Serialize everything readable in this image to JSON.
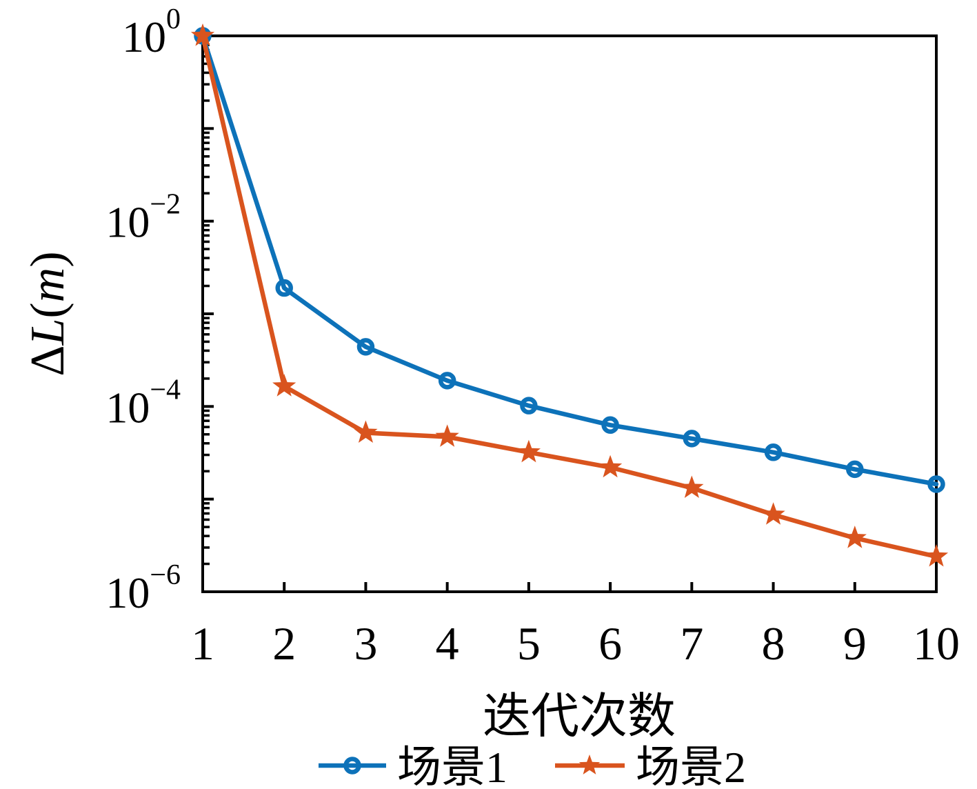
{
  "figure": {
    "background": "#ffffff"
  },
  "chart_data": {
    "type": "line",
    "title": "",
    "xlabel": "迭代次数",
    "ylabel": "ΔL(m)",
    "x": [
      1,
      2,
      3,
      4,
      5,
      6,
      7,
      8,
      9,
      10
    ],
    "x_tick_labels": [
      "1",
      "2",
      "3",
      "4",
      "5",
      "6",
      "7",
      "8",
      "9",
      "10"
    ],
    "y_scale": "log",
    "ylim": [
      1e-06,
      1
    ],
    "y_tick_exponents": [
      0,
      -2,
      -4,
      -6
    ],
    "y_tick_labels": [
      "10^0",
      "10^-2",
      "10^-4",
      "10^-6"
    ],
    "grid": false,
    "legend_position": "below-x-label",
    "axis_color": "#000000",
    "series": [
      {
        "name": "场景1",
        "color": "#0D72B9",
        "marker": "circle",
        "values": [
          1.0,
          0.0019,
          0.00044,
          0.00019,
          0.000102,
          6.3e-05,
          4.5e-05,
          3.2e-05,
          2.1e-05,
          1.45e-05
        ]
      },
      {
        "name": "场景2",
        "color": "#D9541E",
        "marker": "star",
        "values": [
          1.0,
          0.000165,
          5.2e-05,
          4.7e-05,
          3.2e-05,
          2.2e-05,
          1.32e-05,
          6.8e-06,
          3.8e-06,
          2.4e-06
        ]
      }
    ]
  }
}
